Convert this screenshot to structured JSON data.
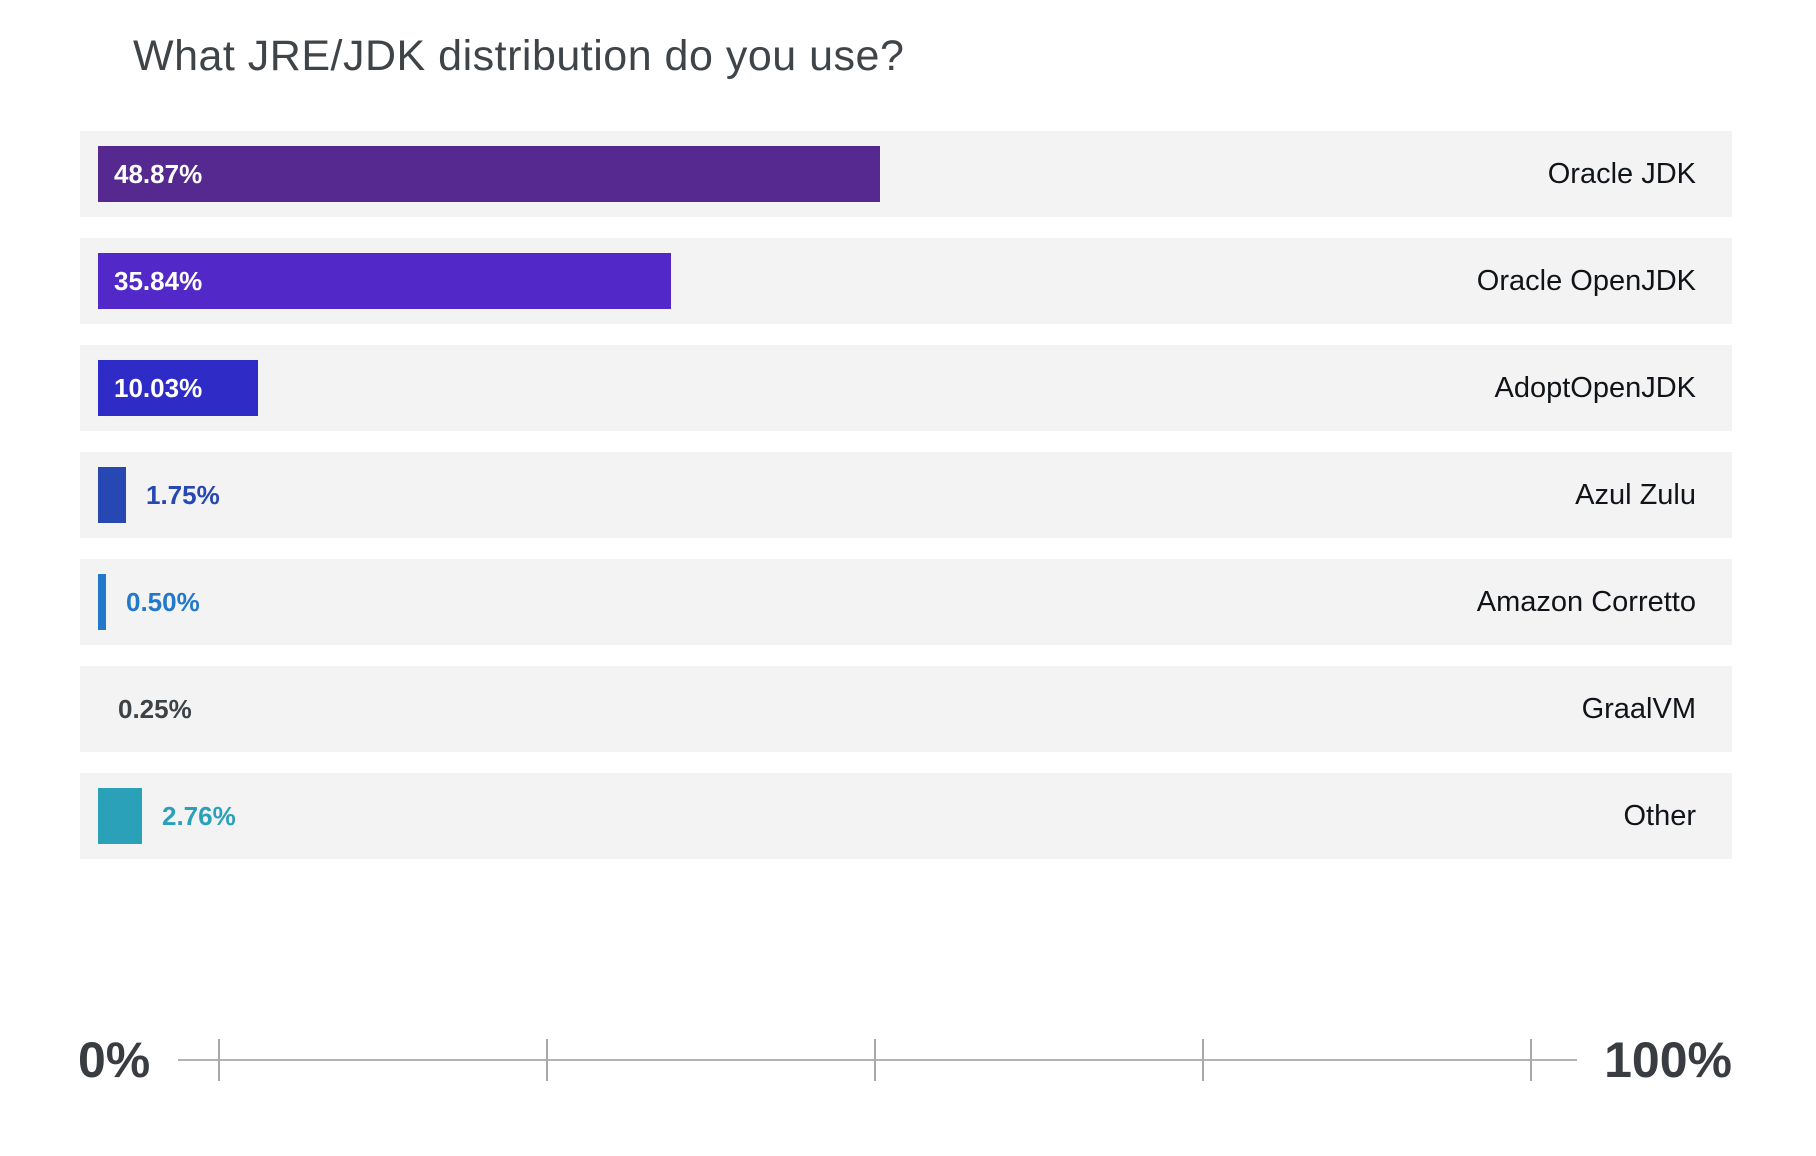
{
  "chart_data": {
    "type": "bar",
    "orientation": "horizontal",
    "title": "What JRE/JDK distribution do you use?",
    "categories": [
      "Oracle JDK",
      "Oracle OpenJDK",
      "AdoptOpenJDK",
      "Azul Zulu",
      "Amazon Corretto",
      "GraalVM",
      "Other"
    ],
    "values": [
      48.87,
      35.84,
      10.03,
      1.75,
      0.5,
      0.25,
      2.76
    ],
    "value_labels": [
      "48.87%",
      "35.84%",
      "10.03%",
      "1.75%",
      "0.50%",
      "0.25%",
      "2.76%"
    ],
    "bar_colors": [
      "#55298f",
      "#5328c9",
      "#2e2bc7",
      "#2747b2",
      "#2278ca",
      null,
      "#2ba1b9"
    ],
    "label_colors": [
      "#ffffff",
      "#ffffff",
      "#ffffff",
      "#2747b2",
      "#2278ca",
      "#3d4247",
      "#2ba1b9"
    ],
    "label_placement": [
      "inside",
      "inside",
      "inside",
      "outside",
      "outside",
      "outside",
      "outside"
    ],
    "xlabel": "",
    "ylabel": "",
    "xlim": [
      0,
      100
    ],
    "axis": {
      "min_label": "0%",
      "max_label": "100%",
      "tick_count": 5,
      "grid": false
    },
    "row_background": "#f3f3f4"
  }
}
